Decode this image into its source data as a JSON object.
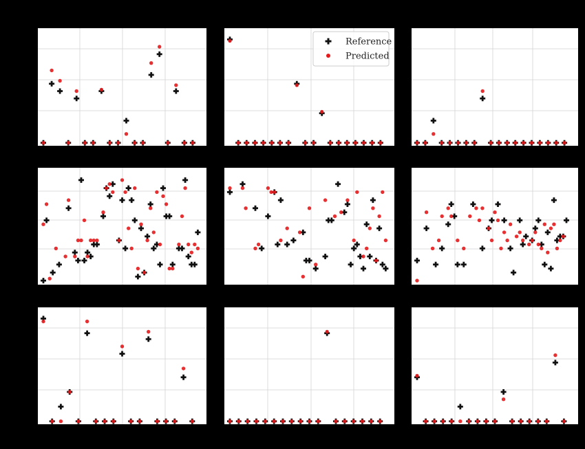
{
  "colors": {
    "figure_background": "#000000",
    "axes_background": "#ffffff",
    "grid": "#d3d3d3",
    "reference": "#111111",
    "predicted": "#e41a1c"
  },
  "legend": {
    "placement": "upper-right of top-middle panel",
    "entries": [
      {
        "label": "Reference",
        "marker": "plus",
        "color": "#111111"
      },
      {
        "label": "Predicted",
        "marker": "dot",
        "color": "#e41a1c"
      }
    ]
  },
  "chart_data": [
    {
      "type": "scatter",
      "panel": "row1-col1",
      "grid": true,
      "xlim": [
        0,
        19
      ],
      "ylim": [
        -0.1,
        3.6
      ],
      "legend": false,
      "series": [
        {
          "name": "Reference",
          "x": [
            0,
            1,
            2,
            3,
            4,
            5,
            6,
            7,
            8,
            9,
            10,
            11,
            12,
            13,
            14,
            15,
            16,
            17,
            18
          ],
          "y": [
            0,
            2,
            1.75,
            0,
            1.5,
            0,
            0,
            1.75,
            0,
            0,
            0.75,
            0,
            0,
            2.3,
            3.0,
            0,
            1.75,
            0,
            0
          ]
        },
        {
          "name": "Predicted",
          "x": [
            0,
            1,
            2,
            3,
            4,
            5,
            6,
            7,
            8,
            9,
            10,
            11,
            12,
            13,
            14,
            15,
            16,
            17,
            18
          ],
          "y": [
            0,
            2.45,
            2.1,
            0,
            1.75,
            0,
            0,
            1.8,
            0,
            0,
            0.3,
            0,
            0,
            2.7,
            3.25,
            0,
            1.95,
            0,
            0
          ]
        }
      ]
    },
    {
      "type": "scatter",
      "panel": "row1-col2",
      "grid": true,
      "xlim": [
        0,
        19
      ],
      "ylim": [
        -0.1,
        3.6
      ],
      "legend": true,
      "series": [
        {
          "name": "Reference",
          "x": [
            0,
            1,
            2,
            3,
            4,
            5,
            6,
            7,
            8,
            9,
            10,
            11,
            12,
            13,
            14,
            15,
            16,
            17,
            18
          ],
          "y": [
            3.5,
            0,
            0,
            0,
            0,
            0,
            0,
            0,
            2,
            0,
            0,
            1,
            0,
            0,
            0,
            0,
            0,
            0,
            0
          ]
        },
        {
          "name": "Predicted",
          "x": [
            0,
            1,
            2,
            3,
            4,
            5,
            6,
            7,
            8,
            9,
            10,
            11,
            12,
            13,
            14,
            15,
            16,
            17,
            18
          ],
          "y": [
            3.45,
            0,
            0,
            0,
            0,
            0,
            0,
            0,
            1.95,
            0,
            0,
            1.05,
            0,
            0,
            0,
            0,
            0,
            0,
            0
          ]
        }
      ]
    },
    {
      "type": "scatter",
      "panel": "row1-col3",
      "grid": true,
      "xlim": [
        0,
        19
      ],
      "ylim": [
        -0.1,
        3.6
      ],
      "legend": false,
      "series": [
        {
          "name": "Reference",
          "x": [
            0,
            1,
            2,
            3,
            4,
            5,
            6,
            7,
            8,
            9,
            10,
            11,
            12,
            13,
            14,
            15,
            16,
            17,
            18
          ],
          "y": [
            0,
            0,
            0.75,
            0,
            0,
            0,
            0,
            0,
            1.5,
            0,
            0,
            0,
            0,
            0,
            0,
            0,
            0,
            0,
            0
          ]
        },
        {
          "name": "Predicted",
          "x": [
            0,
            1,
            2,
            3,
            4,
            5,
            6,
            7,
            8,
            9,
            10,
            11,
            12,
            13,
            14,
            15,
            16,
            17,
            18
          ],
          "y": [
            0,
            0,
            0.3,
            0,
            0,
            0,
            0,
            0,
            1.75,
            0,
            0,
            0,
            0,
            0,
            0,
            0,
            0,
            0,
            0
          ]
        }
      ]
    },
    {
      "type": "scatter",
      "panel": "row2-col1",
      "grid": true,
      "xlim": [
        0,
        50
      ],
      "ylim": [
        -0.1,
        2.6
      ],
      "legend": false,
      "series": [
        {
          "name": "Reference",
          "x": [
            0,
            1,
            3,
            5,
            8,
            10,
            11,
            12,
            13,
            14,
            15,
            16,
            17,
            19,
            20,
            21,
            22,
            24,
            25,
            26,
            27,
            28,
            29,
            30,
            31,
            32,
            33,
            34,
            35,
            36,
            37,
            38,
            39,
            40,
            41,
            43,
            44,
            45,
            46,
            47,
            48,
            49
          ],
          "y": [
            0,
            1.5,
            0.2,
            0.4,
            1.8,
            0.7,
            0.5,
            2.5,
            0.5,
            0.7,
            0.6,
            0.9,
            0.9,
            1.6,
            2.3,
            2.1,
            2.4,
            1.0,
            2.0,
            0.8,
            2.3,
            2.0,
            1.5,
            0.1,
            1.3,
            0.2,
            1.1,
            1.9,
            0.8,
            0.9,
            0.4,
            2.3,
            1.6,
            1.6,
            0.4,
            0.8,
            0.8,
            2.5,
            0.6,
            0.4,
            0.4,
            1.2
          ]
        },
        {
          "name": "Predicted",
          "x": [
            0,
            1,
            2,
            4,
            7,
            8,
            10,
            11,
            12,
            13,
            14,
            15,
            16,
            17,
            19,
            20,
            21,
            22,
            24,
            25,
            26,
            27,
            28,
            29,
            30,
            31,
            32,
            33,
            34,
            35,
            36,
            37,
            38,
            39,
            40,
            41,
            43,
            44,
            45,
            46,
            47,
            48,
            49
          ],
          "y": [
            1.4,
            1.9,
            0.05,
            0.8,
            0.6,
            2.0,
            0.6,
            1.0,
            1.0,
            1.5,
            0.6,
            1.0,
            1.0,
            1.0,
            1.7,
            2.3,
            2.4,
            2.2,
            1.0,
            2.5,
            2.2,
            1.3,
            0.8,
            2.3,
            0.3,
            1.4,
            0.2,
            1.0,
            1.8,
            1.2,
            2.2,
            0.9,
            2.1,
            1.9,
            0.3,
            0.3,
            0.9,
            1.6,
            2.3,
            0.9,
            0.7,
            0.9,
            0.8
          ]
        }
      ]
    },
    {
      "type": "scatter",
      "panel": "row2-col2",
      "grid": true,
      "xlim": [
        0,
        50
      ],
      "ylim": [
        -0.1,
        2.6
      ],
      "legend": false,
      "series": [
        {
          "name": "Reference",
          "x": [
            0,
            4,
            8,
            10,
            12,
            14,
            15,
            16,
            18,
            20,
            23,
            24,
            25,
            27,
            30,
            31,
            32,
            34,
            36,
            37,
            38,
            39,
            40,
            41,
            42,
            43,
            44,
            45,
            46,
            47,
            48,
            49
          ],
          "y": [
            2.2,
            2.4,
            1.8,
            0.8,
            1.6,
            2.2,
            0.9,
            2.0,
            0.9,
            1.0,
            1.2,
            0.5,
            0.5,
            0.3,
            0.6,
            1.5,
            1.5,
            2.4,
            1.7,
            1.9,
            0.4,
            0.8,
            0.9,
            0.6,
            0.3,
            1.4,
            0.6,
            2.0,
            0.5,
            1.3,
            0.4,
            0.3
          ]
        },
        {
          "name": "Predicted",
          "x": [
            0,
            4,
            5,
            8,
            9,
            12,
            13,
            14,
            16,
            18,
            22,
            23,
            25,
            27,
            30,
            33,
            35,
            37,
            39,
            40,
            42,
            43,
            44,
            45,
            46,
            47,
            48,
            49
          ],
          "y": [
            2.3,
            2.3,
            1.8,
            0.8,
            0.9,
            2.3,
            2.2,
            2.2,
            1.0,
            1.3,
            1.2,
            0.1,
            1.8,
            0.4,
            2.0,
            1.6,
            1.7,
            2.0,
            1.0,
            2.2,
            0.6,
            0.8,
            1.3,
            1.8,
            0.5,
            1.6,
            2.2,
            1.0
          ]
        }
      ]
    },
    {
      "type": "scatter",
      "panel": "row2-col3",
      "grid": true,
      "xlim": [
        0,
        50
      ],
      "ylim": [
        -0.1,
        2.6
      ],
      "legend": false,
      "series": [
        {
          "name": "Reference",
          "x": [
            0,
            3,
            6,
            8,
            10,
            11,
            12,
            13,
            15,
            18,
            21,
            23,
            24,
            26,
            28,
            30,
            31,
            33,
            34,
            35,
            37,
            38,
            39,
            40,
            41,
            42,
            43,
            44,
            45,
            46,
            47,
            48
          ],
          "y": [
            0.5,
            1.3,
            0.4,
            0.8,
            1.4,
            1.9,
            1.6,
            0.4,
            0.4,
            1.9,
            0.8,
            1.3,
            1.5,
            1.9,
            1.5,
            0.8,
            0.2,
            1.5,
            0.9,
            1.1,
            1.0,
            1.3,
            1.5,
            0.9,
            0.4,
            1.2,
            0.3,
            2.0,
            1.0,
            1.1,
            1.1,
            1.5
          ]
        },
        {
          "name": "Predicted",
          "x": [
            0,
            3,
            5,
            7,
            8,
            10,
            11,
            13,
            15,
            17,
            19,
            20,
            21,
            23,
            24,
            25,
            26,
            27,
            28,
            29,
            30,
            32,
            33,
            34,
            36,
            37,
            38,
            39,
            40,
            41,
            42,
            43,
            44,
            45,
            46,
            47
          ],
          "y": [
            0,
            1.7,
            0.8,
            1.0,
            1.6,
            1.8,
            1.6,
            1.0,
            0.8,
            1.6,
            1.8,
            1.5,
            1.8,
            1.3,
            1.0,
            1.7,
            1.5,
            0.8,
            1.2,
            1.0,
            1.4,
            1.1,
            1.2,
            1.0,
            0.9,
            1.0,
            1.2,
            0.9,
            0.8,
            1.4,
            0.7,
            1.3,
            1.4,
            0.8,
            1.0,
            1.1
          ]
        }
      ]
    },
    {
      "type": "scatter",
      "panel": "row3-col1",
      "grid": true,
      "xlim": [
        0,
        18
      ],
      "ylim": [
        -0.1,
        3.6
      ],
      "legend": false,
      "series": [
        {
          "name": "Reference",
          "x": [
            0,
            1,
            2,
            3,
            4,
            5,
            6,
            7,
            8,
            9,
            10,
            11,
            12,
            13,
            14,
            15,
            16,
            17
          ],
          "y": [
            3.5,
            0,
            0.5,
            1.0,
            0,
            3.0,
            0,
            0,
            0,
            2.3,
            0,
            0,
            2.8,
            0,
            0,
            0,
            1.5,
            0
          ]
        },
        {
          "name": "Predicted",
          "x": [
            0,
            1,
            2,
            3,
            4,
            5,
            6,
            7,
            8,
            9,
            10,
            11,
            12,
            13,
            14,
            15,
            16,
            17
          ],
          "y": [
            3.4,
            0,
            0,
            1.0,
            0,
            3.4,
            0,
            0,
            0,
            2.55,
            0,
            0,
            3.05,
            0,
            0,
            0,
            1.8,
            0
          ]
        }
      ]
    },
    {
      "type": "scatter",
      "panel": "row3-col2",
      "grid": true,
      "xlim": [
        0,
        18
      ],
      "ylim": [
        -0.1,
        3.6
      ],
      "legend": false,
      "series": [
        {
          "name": "Reference",
          "x": [
            0,
            1,
            2,
            3,
            4,
            5,
            6,
            7,
            8,
            9,
            10,
            11,
            12,
            13,
            14,
            15,
            16,
            17
          ],
          "y": [
            0,
            0,
            0,
            0,
            0,
            0,
            0,
            0,
            0,
            0,
            0,
            3.0,
            0,
            0,
            0,
            0,
            0,
            0
          ]
        },
        {
          "name": "Predicted",
          "x": [
            0,
            1,
            2,
            3,
            4,
            5,
            6,
            7,
            8,
            9,
            10,
            11,
            12,
            13,
            14,
            15,
            16,
            17
          ],
          "y": [
            0,
            0,
            0,
            0,
            0,
            0,
            0,
            0,
            0,
            0,
            0,
            3.05,
            0,
            0,
            0,
            0,
            0,
            0
          ]
        }
      ]
    },
    {
      "type": "scatter",
      "panel": "row3-col3",
      "grid": true,
      "xlim": [
        0,
        18
      ],
      "ylim": [
        -0.1,
        3.6
      ],
      "legend": false,
      "series": [
        {
          "name": "Reference",
          "x": [
            0,
            1,
            2,
            3,
            4,
            5,
            6,
            7,
            8,
            9,
            10,
            11,
            12,
            13,
            14,
            15,
            16,
            17
          ],
          "y": [
            1.5,
            0,
            0,
            0,
            0,
            0.5,
            0,
            0,
            0,
            0,
            1.0,
            0,
            0,
            0,
            0,
            0,
            2.0,
            0
          ]
        },
        {
          "name": "Predicted",
          "x": [
            0,
            1,
            2,
            3,
            4,
            5,
            6,
            7,
            8,
            9,
            10,
            11,
            12,
            13,
            14,
            15,
            16,
            17
          ],
          "y": [
            1.55,
            0,
            0,
            0,
            0,
            0,
            0,
            0,
            0,
            0,
            0.75,
            0,
            0,
            0,
            0,
            0,
            2.25,
            0
          ]
        }
      ]
    }
  ]
}
